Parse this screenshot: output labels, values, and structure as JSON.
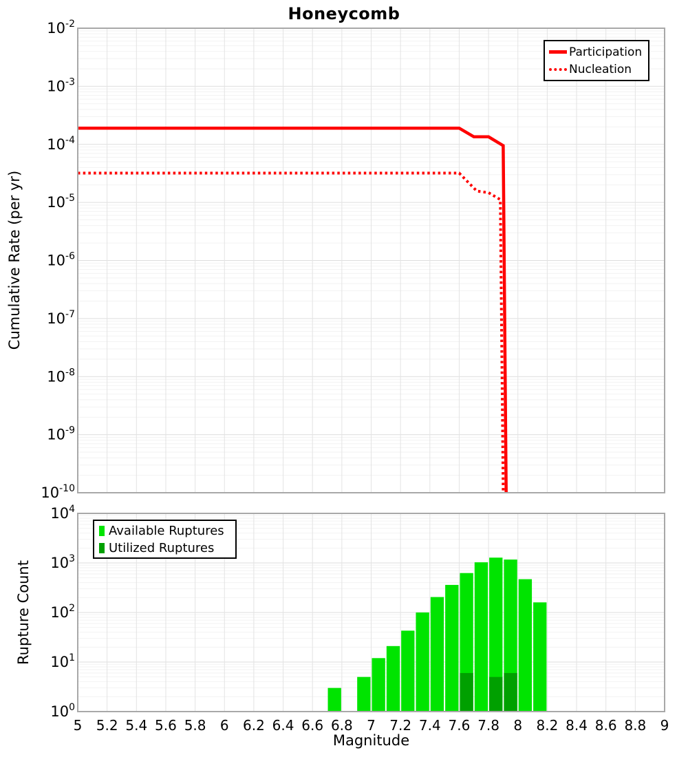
{
  "title": "Honeycomb",
  "colors": {
    "line_red": "#fe0000",
    "available_green": "#00e400",
    "utilized_green": "#00a000",
    "grid_minor": "#f2f2f2",
    "grid_major": "#dedede",
    "grid_vertical": "#e3e3e3",
    "plot_border": "#a8a8a8",
    "text": "#000000"
  },
  "chart_data": [
    {
      "type": "line",
      "title": "Honeycomb",
      "ylabel": "Cumulative Rate (per yr)",
      "yscale": "log",
      "ylim": [
        1e-10,
        0.01
      ],
      "xlim": [
        5,
        9
      ],
      "grid": true,
      "legend_position": "top-right",
      "y_tick_exponents": [
        -2,
        -3,
        -4,
        -5,
        -6,
        -7,
        -8,
        -9,
        -10
      ],
      "series": [
        {
          "name": "Participation",
          "color": "#fe0000",
          "line_style": "solid",
          "points": [
            [
              5.0,
              0.00019
            ],
            [
              7.6,
              0.00019
            ],
            [
              7.7,
              0.000135
            ],
            [
              7.8,
              0.000135
            ],
            [
              7.9,
              9.5e-05
            ],
            [
              7.92,
              1e-10
            ]
          ]
        },
        {
          "name": "Nucleation",
          "color": "#fe0000",
          "line_style": "dotted",
          "points": [
            [
              5.0,
              3.2e-05
            ],
            [
              7.6,
              3.2e-05
            ],
            [
              7.72,
              1.57e-05
            ],
            [
              7.8,
              1.47e-05
            ],
            [
              7.88,
              1.12e-05
            ],
            [
              7.9,
              1e-10
            ]
          ]
        }
      ]
    },
    {
      "type": "bar",
      "xlabel": "Magnitude",
      "ylabel": "Rupture Count",
      "yscale": "log",
      "ylim": [
        1,
        10000
      ],
      "xlim": [
        5,
        9
      ],
      "grid": true,
      "legend_position": "top-left",
      "bin_width": 0.1,
      "y_tick_exponents": [
        4,
        3,
        2,
        1,
        0
      ],
      "x_tick_labels": [
        "5",
        "5.2",
        "5.4",
        "5.6",
        "5.8",
        "6",
        "6.2",
        "6.4",
        "6.6",
        "6.8",
        "7",
        "7.2",
        "7.4",
        "7.6",
        "7.8",
        "8",
        "8.2",
        "8.4",
        "8.6",
        "8.8",
        "9"
      ],
      "series": [
        {
          "name": "Available Ruptures",
          "color": "#00e400",
          "bins": [
            [
              6.7,
              3
            ],
            [
              6.9,
              5
            ],
            [
              7.0,
              12
            ],
            [
              7.1,
              21
            ],
            [
              7.2,
              43
            ],
            [
              7.3,
              100
            ],
            [
              7.4,
              205
            ],
            [
              7.5,
              360
            ],
            [
              7.6,
              625
            ],
            [
              7.7,
              1030
            ],
            [
              7.8,
              1280
            ],
            [
              7.9,
              1170
            ],
            [
              8.0,
              470
            ],
            [
              8.1,
              160
            ]
          ]
        },
        {
          "name": "Utilized Ruptures",
          "color": "#00a000",
          "bins": [
            [
              7.6,
              6
            ],
            [
              7.8,
              5
            ],
            [
              7.9,
              6
            ]
          ]
        }
      ]
    }
  ]
}
